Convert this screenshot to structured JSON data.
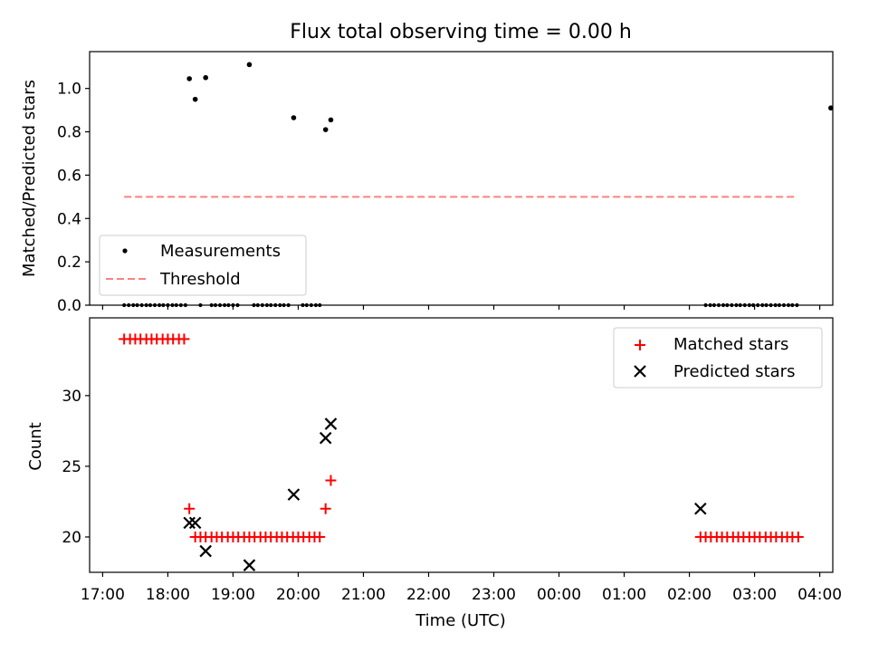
{
  "chart_data": [
    {
      "type": "scatter",
      "title": "Flux total observing time = 0.00 h",
      "xlabel": "",
      "ylabel": "Matched/Predicted stars",
      "x_unit": "hours from 17:00 UTC",
      "xlim": [
        16.8,
        28.2
      ],
      "ylim": [
        0,
        1.17
      ],
      "yticks": [
        "0.0",
        "0.2",
        "0.4",
        "0.6",
        "0.8",
        "1.0"
      ],
      "legend_position": "lower-left",
      "series": [
        {
          "name": "Measurements",
          "kind": "points",
          "color": "#000000",
          "points": [
            [
              17.33,
              0
            ],
            [
              17.4,
              0
            ],
            [
              17.47,
              0
            ],
            [
              17.53,
              0
            ],
            [
              17.6,
              0
            ],
            [
              17.67,
              0
            ],
            [
              17.73,
              0
            ],
            [
              17.8,
              0
            ],
            [
              17.87,
              0
            ],
            [
              17.93,
              0
            ],
            [
              18.0,
              0
            ],
            [
              18.07,
              0
            ],
            [
              18.13,
              0
            ],
            [
              18.2,
              0
            ],
            [
              18.27,
              0
            ],
            [
              18.33,
              1.045
            ],
            [
              18.42,
              0.95
            ],
            [
              18.58,
              1.05
            ],
            [
              18.5,
              0
            ],
            [
              18.67,
              0
            ],
            [
              18.73,
              0
            ],
            [
              18.8,
              0
            ],
            [
              18.87,
              0
            ],
            [
              18.93,
              0
            ],
            [
              19.0,
              0
            ],
            [
              19.07,
              0
            ],
            [
              19.25,
              1.11
            ],
            [
              19.32,
              0
            ],
            [
              19.38,
              0
            ],
            [
              19.45,
              0
            ],
            [
              19.52,
              0
            ],
            [
              19.58,
              0
            ],
            [
              19.65,
              0
            ],
            [
              19.72,
              0
            ],
            [
              19.78,
              0
            ],
            [
              19.85,
              0
            ],
            [
              19.93,
              0.865
            ],
            [
              20.07,
              0
            ],
            [
              20.13,
              0
            ],
            [
              20.2,
              0
            ],
            [
              20.27,
              0
            ],
            [
              20.33,
              0
            ],
            [
              20.42,
              0.81
            ],
            [
              20.5,
              0.855
            ],
            [
              28.17,
              0.91
            ],
            [
              26.25,
              0
            ],
            [
              26.32,
              0
            ],
            [
              26.38,
              0
            ],
            [
              26.45,
              0
            ],
            [
              26.52,
              0
            ],
            [
              26.58,
              0
            ],
            [
              26.65,
              0
            ],
            [
              26.72,
              0
            ],
            [
              26.78,
              0
            ],
            [
              26.85,
              0
            ],
            [
              26.92,
              0
            ],
            [
              26.98,
              0
            ],
            [
              27.05,
              0
            ],
            [
              27.12,
              0
            ],
            [
              27.18,
              0
            ],
            [
              27.25,
              0
            ],
            [
              27.32,
              0
            ],
            [
              27.38,
              0
            ],
            [
              27.45,
              0
            ],
            [
              27.52,
              0
            ],
            [
              27.58,
              0
            ],
            [
              27.65,
              0
            ]
          ]
        },
        {
          "name": "Threshold",
          "kind": "dashed-line",
          "color": "#ff8080",
          "points": [
            [
              17.33,
              0.5
            ],
            [
              27.65,
              0.5
            ]
          ]
        }
      ]
    },
    {
      "type": "scatter",
      "title": "",
      "xlabel": "Time (UTC)",
      "ylabel": "Count",
      "x_unit": "hours from 17:00 UTC",
      "xlim": [
        16.8,
        28.2
      ],
      "ylim": [
        17.5,
        35.5
      ],
      "yticks": [
        "20",
        "25",
        "30"
      ],
      "xticks": [
        "17:00",
        "18:00",
        "19:00",
        "20:00",
        "21:00",
        "22:00",
        "23:00",
        "00:00",
        "01:00",
        "02:00",
        "03:00",
        "04:00"
      ],
      "legend_position": "upper-right",
      "series": [
        {
          "name": "Matched stars",
          "kind": "plus",
          "color": "#ff0000",
          "points": [
            [
              17.33,
              34
            ],
            [
              17.42,
              34
            ],
            [
              17.5,
              34
            ],
            [
              17.58,
              34
            ],
            [
              17.67,
              34
            ],
            [
              17.75,
              34
            ],
            [
              17.83,
              34
            ],
            [
              17.92,
              34
            ],
            [
              18.0,
              34
            ],
            [
              18.08,
              34
            ],
            [
              18.17,
              34
            ],
            [
              18.25,
              34
            ],
            [
              18.33,
              22
            ],
            [
              18.42,
              20
            ],
            [
              18.5,
              20
            ],
            [
              18.58,
              20
            ],
            [
              18.67,
              20
            ],
            [
              18.75,
              20
            ],
            [
              18.83,
              20
            ],
            [
              18.92,
              20
            ],
            [
              19.0,
              20
            ],
            [
              19.08,
              20
            ],
            [
              19.17,
              20
            ],
            [
              19.25,
              20
            ],
            [
              19.33,
              20
            ],
            [
              19.42,
              20
            ],
            [
              19.5,
              20
            ],
            [
              19.58,
              20
            ],
            [
              19.67,
              20
            ],
            [
              19.75,
              20
            ],
            [
              19.83,
              20
            ],
            [
              19.92,
              20
            ],
            [
              20.0,
              20
            ],
            [
              20.08,
              20
            ],
            [
              20.17,
              20
            ],
            [
              20.25,
              20
            ],
            [
              20.33,
              20
            ],
            [
              20.42,
              22
            ],
            [
              20.5,
              24
            ],
            [
              26.17,
              20
            ],
            [
              26.25,
              20
            ],
            [
              26.33,
              20
            ],
            [
              26.42,
              20
            ],
            [
              26.5,
              20
            ],
            [
              26.58,
              20
            ],
            [
              26.67,
              20
            ],
            [
              26.75,
              20
            ],
            [
              26.83,
              20
            ],
            [
              26.92,
              20
            ],
            [
              27.0,
              20
            ],
            [
              27.08,
              20
            ],
            [
              27.17,
              20
            ],
            [
              27.25,
              20
            ],
            [
              27.33,
              20
            ],
            [
              27.42,
              20
            ],
            [
              27.5,
              20
            ],
            [
              27.58,
              20
            ],
            [
              27.67,
              20
            ]
          ]
        },
        {
          "name": "Predicted stars",
          "kind": "x",
          "color": "#000000",
          "points": [
            [
              18.33,
              21
            ],
            [
              18.42,
              21
            ],
            [
              18.58,
              19
            ],
            [
              19.25,
              18
            ],
            [
              19.93,
              23
            ],
            [
              20.42,
              27
            ],
            [
              20.5,
              28
            ],
            [
              26.17,
              22
            ]
          ]
        }
      ]
    }
  ]
}
